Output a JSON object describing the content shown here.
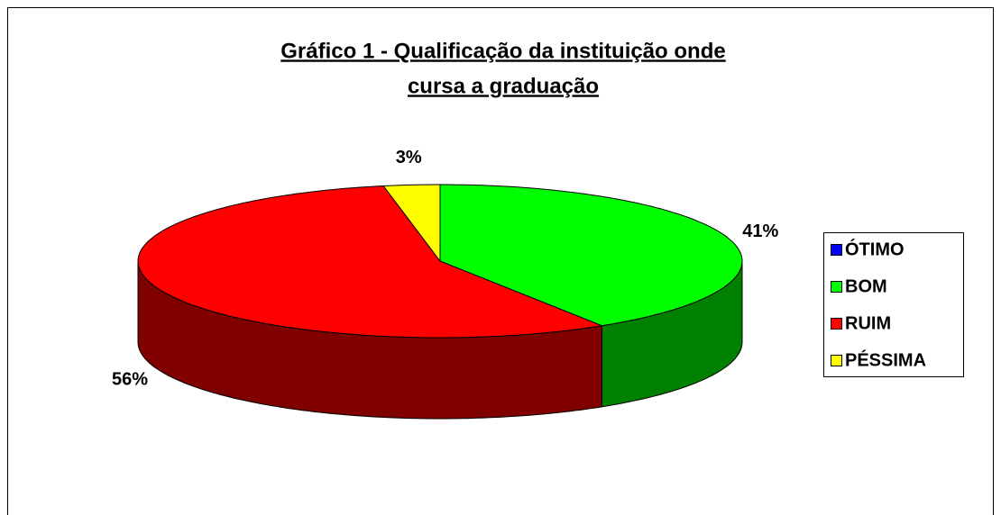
{
  "chart_data": {
    "type": "pie",
    "title": [
      "Gráfico 1 - Qualificação da instituição onde",
      "cursa a graduação"
    ],
    "categories": [
      "ÓTIMO",
      "BOM",
      "RUIM",
      "PÉSSIMA"
    ],
    "values": [
      0,
      41,
      56,
      3
    ],
    "value_labels": [
      null,
      "41%",
      "56%",
      "3%"
    ],
    "colors": [
      "#0000ff",
      "#00ff00",
      "#ff0000",
      "#ffff00"
    ],
    "side_colors": [
      "#000080",
      "#008000",
      "#800000",
      "#808000"
    ],
    "legend": "right"
  }
}
